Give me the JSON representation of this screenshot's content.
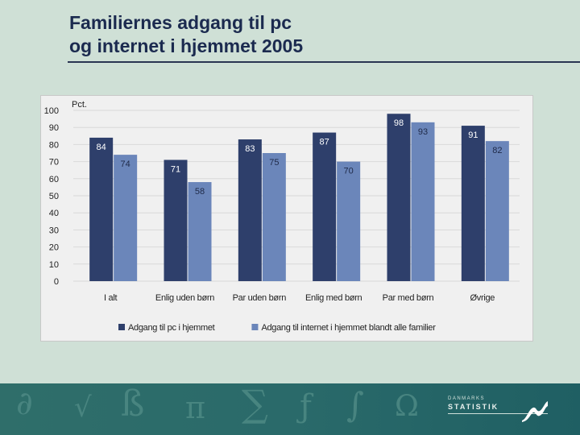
{
  "slide": {
    "title_line1": "Familiernes adgang til pc",
    "title_line2": "og internet i hjemmet 2005"
  },
  "logo": {
    "small_text": "DANMARKS",
    "big_text": "STATISTIK"
  },
  "colors": {
    "series1": "#2e3f6b",
    "series2": "#6b86ba",
    "grid": "#d9d9d9",
    "background": "#cfe0d6"
  },
  "chart_data": {
    "type": "bar",
    "title": "",
    "ylabel": "Pct.",
    "xlabel": "",
    "ylim": [
      0,
      100
    ],
    "yticks": [
      0,
      10,
      20,
      30,
      40,
      50,
      60,
      70,
      80,
      90,
      100
    ],
    "grid": true,
    "legend_position": "bottom",
    "categories": [
      "I alt",
      "Enlig uden børn",
      "Par uden børn",
      "Enlig med børn",
      "Par med børn",
      "Øvrige"
    ],
    "series": [
      {
        "name": "Adgang til pc i hjemmet",
        "values": [
          84,
          71,
          83,
          87,
          98,
          91
        ]
      },
      {
        "name": "Adgang til internet i hjemmet blandt alle familier",
        "values": [
          74,
          58,
          75,
          70,
          93,
          82
        ]
      }
    ]
  }
}
